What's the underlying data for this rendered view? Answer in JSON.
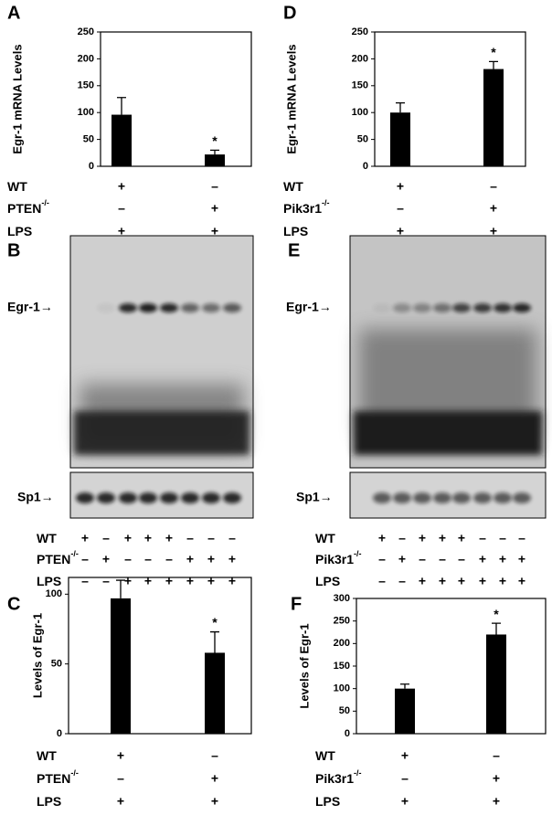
{
  "chart_data": [
    {
      "type": "bar",
      "letter": "A",
      "ylabel": "Egr-1 mRNA Levels",
      "values": [
        96,
        22
      ],
      "errors": [
        32,
        8
      ],
      "color": "#000000",
      "ylim": [
        0,
        250
      ],
      "yticks": [
        0,
        50,
        100,
        150,
        200,
        250
      ],
      "annotation": {
        "category": 1,
        "text": "*"
      },
      "conditions": [
        {
          "label": "WT",
          "marks": [
            "+",
            "–"
          ]
        },
        {
          "label": "PTEN",
          "sup": "-/-",
          "marks": [
            "–",
            "+"
          ]
        },
        {
          "label": "LPS",
          "marks": [
            "+",
            "+"
          ]
        }
      ]
    },
    {
      "type": "bar",
      "letter": "D",
      "ylabel": "Egr-1 mRNA Levels",
      "values": [
        100,
        181
      ],
      "errors": [
        18,
        14
      ],
      "color": "#000000",
      "ylim": [
        0,
        250
      ],
      "yticks": [
        0,
        50,
        100,
        150,
        200,
        250
      ],
      "annotation": {
        "category": 1,
        "text": "*"
      },
      "conditions": [
        {
          "label": "WT",
          "marks": [
            "+",
            "–"
          ]
        },
        {
          "label": "Pik3r1",
          "sup": "-/-",
          "marks": [
            "–",
            "+"
          ]
        },
        {
          "label": "LPS",
          "marks": [
            "+",
            "+"
          ]
        }
      ]
    },
    {
      "type": "bar",
      "letter": "C",
      "ylabel": "Levels of Egr-1",
      "values": [
        97,
        58
      ],
      "errors": [
        13,
        15
      ],
      "color": "#000000",
      "ylim": [
        0,
        112
      ],
      "yticks": [
        0,
        50,
        100
      ],
      "annotation": {
        "category": 1,
        "text": "*"
      },
      "conditions": [
        {
          "label": "WT",
          "marks": [
            "+",
            "–"
          ]
        },
        {
          "label": "PTEN",
          "sup": "-/-",
          "marks": [
            "–",
            "+"
          ]
        },
        {
          "label": "LPS",
          "marks": [
            "+",
            "+"
          ]
        }
      ]
    },
    {
      "type": "bar",
      "letter": "F",
      "ylabel": "Levels of Egr-1",
      "values": [
        100,
        220
      ],
      "errors": [
        10,
        25
      ],
      "color": "#000000",
      "ylim": [
        0,
        300
      ],
      "yticks": [
        0,
        50,
        100,
        150,
        200,
        250,
        300
      ],
      "annotation": {
        "category": 1,
        "text": "*"
      },
      "conditions": [
        {
          "label": "WT",
          "marks": [
            "+",
            "–"
          ]
        },
        {
          "label": "Pik3r1",
          "sup": "-/-",
          "marks": [
            "–",
            "+"
          ]
        },
        {
          "label": "LPS",
          "marks": [
            "+",
            "+"
          ]
        }
      ]
    }
  ],
  "gels": [
    {
      "letter": "B",
      "bands": [
        "Egr-1→",
        "Sp1→"
      ],
      "conditions": [
        {
          "label": "WT",
          "marks": [
            "+",
            "–",
            "+",
            "+",
            "+",
            "–",
            "–",
            "–"
          ]
        },
        {
          "label": "PTEN",
          "sup": "-/-",
          "marks": [
            "–",
            "+",
            "–",
            "–",
            "–",
            "+",
            "+",
            "+"
          ]
        },
        {
          "label": "LPS",
          "marks": [
            "–",
            "–",
            "+",
            "+",
            "+",
            "+",
            "+",
            "+"
          ]
        }
      ]
    },
    {
      "letter": "E",
      "bands": [
        "Egr-1→",
        "Sp1→"
      ],
      "conditions": [
        {
          "label": "WT",
          "marks": [
            "+",
            "–",
            "+",
            "+",
            "+",
            "–",
            "–",
            "–"
          ]
        },
        {
          "label": "Pik3r1",
          "sup": "-/-",
          "marks": [
            "–",
            "+",
            "–",
            "–",
            "–",
            "+",
            "+",
            "+"
          ]
        },
        {
          "label": "LPS",
          "marks": [
            "–",
            "–",
            "+",
            "+",
            "+",
            "+",
            "+",
            "+"
          ]
        }
      ]
    }
  ]
}
